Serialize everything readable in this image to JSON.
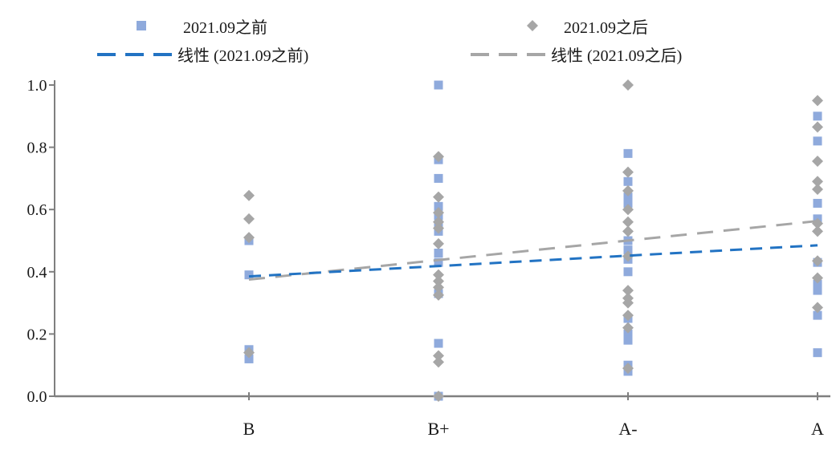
{
  "chart_data": {
    "type": "scatter",
    "title": "",
    "xlabel": "",
    "ylabel": "",
    "categories": [
      "B",
      "B+",
      "A-",
      "A"
    ],
    "y_ticks": [
      "0.0",
      "0.2",
      "0.4",
      "0.6",
      "0.8",
      "1.0"
    ],
    "ylim": [
      0.0,
      1.0
    ],
    "grid": false,
    "legend_position": "top",
    "colors": {
      "square_fill": "#8FAADC",
      "diamond_fill": "#A6A6A6",
      "trend_before": "#2273C3",
      "trend_after": "#A6A6A6",
      "axis": "#7F7F7F",
      "text": "#1a1a1a"
    },
    "series": [
      {
        "name": "2021.09之前",
        "marker": "square",
        "color": "#8FAADC",
        "points_by_category": [
          [
            0.5,
            0.39,
            0.15,
            0.12
          ],
          [
            1.0,
            0.76,
            0.7,
            0.61,
            0.58,
            0.55,
            0.53,
            0.46,
            0.43,
            0.33,
            0.17,
            0.0
          ],
          [
            0.78,
            0.69,
            0.64,
            0.62,
            0.5,
            0.47,
            0.44,
            0.4,
            0.25,
            0.2,
            0.18,
            0.1,
            0.08
          ],
          [
            0.9,
            0.82,
            0.62,
            0.57,
            0.43,
            0.36,
            0.34,
            0.26,
            0.14
          ]
        ]
      },
      {
        "name": "2021.09之后",
        "marker": "diamond",
        "color": "#A6A6A6",
        "points_by_category": [
          [
            0.645,
            0.57,
            0.51,
            0.14
          ],
          [
            0.77,
            0.64,
            0.59,
            0.56,
            0.54,
            0.49,
            0.39,
            0.37,
            0.35,
            0.325,
            0.13,
            0.11,
            0.0
          ],
          [
            1.0,
            0.72,
            0.66,
            0.6,
            0.56,
            0.53,
            0.45,
            0.34,
            0.315,
            0.3,
            0.26,
            0.22,
            0.09
          ],
          [
            0.95,
            0.865,
            0.755,
            0.69,
            0.665,
            0.555,
            0.53,
            0.435,
            0.38,
            0.285
          ]
        ]
      }
    ],
    "trendlines": [
      {
        "name": "线性 (2021.09之前)",
        "color": "#2273C3",
        "y_at_B": 0.385,
        "y_at_A": 0.485
      },
      {
        "name": "线性 (2021.09之后)",
        "color": "#A6A6A6",
        "y_at_B": 0.375,
        "y_at_A": 0.563
      }
    ]
  }
}
